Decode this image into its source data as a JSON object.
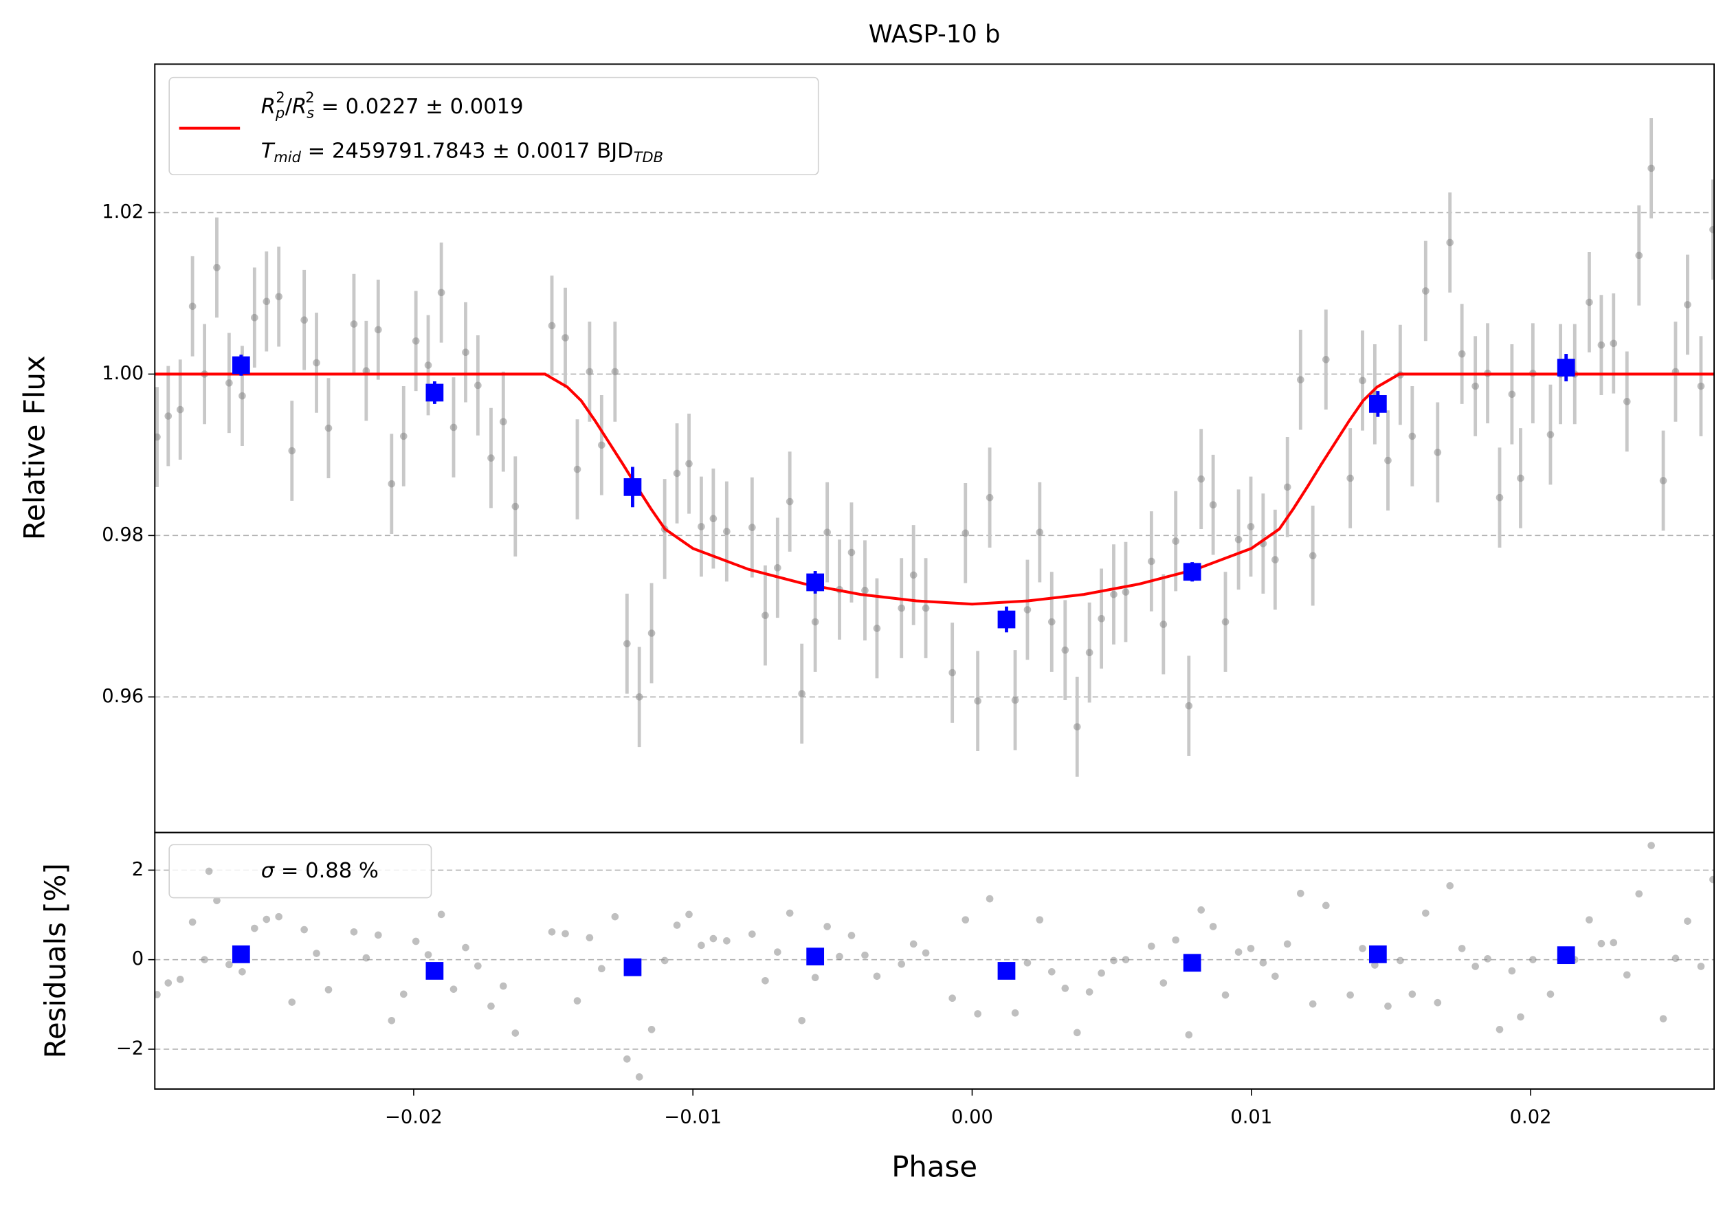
{
  "chart_data": [
    {
      "type": "lightcurve",
      "title": "WASP-10 b",
      "ylabel": "Relative Flux",
      "grid": true,
      "xlim": [
        -0.02927,
        0.02657
      ],
      "ylim": [
        0.9432,
        1.0384
      ],
      "yticks": [
        0.96,
        0.98,
        {
          "value": 1,
          "label": "1.00"
        },
        1.02
      ],
      "points": {
        "color": "#808080",
        "error_color": "#c8c8c8",
        "error": 0.0062,
        "x": [
          -0.02919,
          -0.02879,
          -0.02836,
          -0.02792,
          -0.02749,
          -0.02705,
          -0.02661,
          -0.02614,
          -0.0257,
          -0.02527,
          -0.02483,
          -0.02436,
          -0.02392,
          -0.02348,
          -0.02305,
          -0.02214,
          -0.0217,
          -0.02127,
          -0.02079,
          -0.02036,
          -0.01992,
          -0.01948,
          -0.01901,
          -0.01857,
          -0.01814,
          -0.0177,
          -0.01723,
          -0.01679,
          -0.01636,
          -0.01505,
          -0.01457,
          -0.01414,
          -0.0137,
          -0.01327,
          -0.01279,
          -0.01236,
          -0.01192,
          -0.01148,
          -0.01101,
          -0.01057,
          -0.01014,
          -0.0097,
          -0.00927,
          -0.00879,
          -0.00788,
          -0.00741,
          -0.00697,
          -0.00653,
          -0.0061,
          -0.00562,
          -0.00519,
          -0.00475,
          -0.00432,
          -0.00384,
          -0.00341,
          -0.00253,
          -0.0021,
          -0.00166,
          -0.00071,
          -0.00024,
          0.0002,
          0.00063,
          0.00154,
          0.00198,
          0.00242,
          0.00285,
          0.00333,
          0.00376,
          0.0042,
          0.00463,
          0.00507,
          0.0055,
          0.00642,
          0.00685,
          0.00729,
          0.00776,
          0.0082,
          0.00863,
          0.00907,
          0.00954,
          0.00998,
          0.01042,
          0.01085,
          0.01129,
          0.01176,
          0.0122,
          0.01267,
          0.01354,
          0.01398,
          0.01442,
          0.01489,
          0.01533,
          0.01576,
          0.01624,
          0.01667,
          0.01711,
          0.01754,
          0.01802,
          0.01846,
          0.01889,
          0.01933,
          0.01964,
          0.02008,
          0.02071,
          0.02107,
          0.02158,
          0.0221,
          0.02253,
          0.02297,
          0.02345,
          0.02388,
          0.02432,
          0.02475,
          0.02519,
          0.02562,
          0.0261,
          0.02653
        ],
        "values": [
          0.9922,
          0.9948,
          0.9956,
          1.0084,
          1.0,
          1.0132,
          0.9989,
          0.9973,
          1.007,
          1.009,
          1.0096,
          0.9905,
          1.0067,
          1.0014,
          0.9933,
          1.0062,
          1.0004,
          1.0055,
          0.9864,
          0.9923,
          1.0041,
          1.0011,
          1.0101,
          0.9934,
          1.0027,
          0.9986,
          0.9896,
          0.9941,
          0.9836,
          1.006,
          1.0045,
          0.9882,
          1.0003,
          0.9912,
          1.0003,
          0.9666,
          0.96,
          0.9679,
          0.9808,
          0.9877,
          0.9889,
          0.9811,
          0.9821,
          0.9805,
          0.981,
          0.9701,
          0.976,
          0.9842,
          0.9604,
          0.9693,
          0.9804,
          0.9733,
          0.9779,
          0.9732,
          0.9685,
          0.971,
          0.9751,
          0.971,
          0.963,
          0.9803,
          0.9595,
          0.9847,
          0.9596,
          0.9708,
          0.9804,
          0.9693,
          0.9658,
          0.9563,
          0.9655,
          0.9697,
          0.9727,
          0.973,
          0.9768,
          0.969,
          0.9793,
          0.9589,
          0.987,
          0.9838,
          0.9693,
          0.9795,
          0.9811,
          0.979,
          0.977,
          0.986,
          0.9993,
          0.9775,
          1.0018,
          0.9871,
          0.9992,
          0.9975,
          0.9893,
          0.9999,
          0.9923,
          1.0103,
          0.9903,
          1.0163,
          1.0025,
          0.9985,
          1.0001,
          0.9847,
          0.9975,
          0.9871,
          1.0001,
          0.9925,
          1.0,
          1.0,
          1.0089,
          1.0036,
          1.0038,
          0.9966,
          1.0147,
          1.0255,
          0.9868,
          1.0003,
          1.0086,
          0.9985,
          1.0179
        ]
      },
      "binned": {
        "color": "#0000ff",
        "x": [
          -0.02618,
          -0.01925,
          -0.01216,
          -0.00562,
          0.00123,
          0.00788,
          0.01453,
          0.02127
        ],
        "values": [
          1.0011,
          0.9977,
          0.986,
          0.9742,
          0.9696,
          0.9755,
          0.9963,
          1.0008
        ],
        "errors": [
          0.0013,
          0.0014,
          0.0025,
          0.0014,
          0.0016,
          0.0012,
          0.0016,
          0.0017
        ]
      },
      "model": {
        "color": "#ff0000",
        "name": [
          "R",
          "p",
          "2",
          "/",
          "R",
          "s",
          "2",
          " = 0.0227 ± 0.0019"
        ],
        "name2": [
          "T",
          "mid",
          " = 2459791.7843 ± 0.0017 BJD",
          "TDB"
        ],
        "x": [
          -0.02927,
          -0.0153,
          -0.0145,
          -0.014,
          -0.0135,
          -0.013,
          -0.0125,
          -0.012,
          -0.0115,
          -0.011,
          -0.01,
          -0.008,
          -0.006,
          -0.004,
          -0.002,
          0,
          0.002,
          0.004,
          0.006,
          0.008,
          0.01,
          0.011,
          0.0115,
          0.012,
          0.0125,
          0.013,
          0.0135,
          0.014,
          0.0145,
          0.0153,
          0.02657
        ],
        "values": [
          1.0,
          1.0,
          0.9984,
          0.9967,
          0.9942,
          0.9915,
          0.9888,
          0.986,
          0.9833,
          0.9808,
          0.9784,
          0.9758,
          0.974,
          0.9727,
          0.9719,
          0.9715,
          0.9719,
          0.9727,
          0.974,
          0.9758,
          0.9784,
          0.9808,
          0.9833,
          0.986,
          0.9888,
          0.9915,
          0.9942,
          0.9967,
          0.9984,
          1.0,
          1.0
        ]
      }
    },
    {
      "type": "residuals",
      "xlabel": "Phase",
      "ylabel": "Residuals [%]",
      "grid": true,
      "xlim": [
        -0.02927,
        0.02657
      ],
      "ylim": [
        -2.89,
        2.84
      ],
      "xticks": [
        {
          "value": -0.02,
          "label": "−0.02"
        },
        {
          "value": -0.01,
          "label": "−0.01"
        },
        {
          "value": 0,
          "label": "0.00"
        },
        0.01,
        0.02
      ],
      "yticks": [
        {
          "value": -2,
          "label": "−2"
        },
        0,
        2
      ],
      "legend": [
        "σ",
        " = 0.88 %"
      ],
      "points": {
        "color": "#808080",
        "values": [
          -0.78,
          -0.52,
          -0.44,
          0.84,
          0.0,
          1.32,
          -0.11,
          -0.27,
          0.7,
          0.9,
          0.96,
          -0.95,
          0.67,
          0.14,
          -0.67,
          0.62,
          0.04,
          0.55,
          -1.36,
          -0.77,
          0.41,
          0.11,
          1.01,
          -0.66,
          0.27,
          -0.14,
          -1.04,
          -0.59,
          -1.64,
          0.62,
          0.58,
          -0.92,
          0.49,
          -0.2,
          0.96,
          -2.22,
          -2.62,
          -1.56,
          -0.02,
          0.77,
          1.01,
          0.32,
          0.47,
          0.42,
          0.57,
          -0.47,
          0.17,
          1.04,
          -1.36,
          -0.4,
          0.74,
          0.07,
          0.54,
          0.1,
          -0.37,
          -0.1,
          0.35,
          0.15,
          -0.86,
          0.89,
          -1.21,
          1.36,
          -1.19,
          -0.07,
          0.89,
          -0.27,
          -0.64,
          -1.63,
          -0.72,
          -0.3,
          -0.02,
          0.0,
          0.3,
          -0.52,
          0.44,
          -1.68,
          1.11,
          0.74,
          -0.79,
          0.17,
          0.25,
          -0.07,
          -0.37,
          0.35,
          1.48,
          -0.99,
          1.21,
          -0.79,
          0.25,
          -0.12,
          -1.04,
          -0.02,
          -0.77,
          1.04,
          -0.96,
          1.65,
          0.25,
          -0.15,
          0.02,
          -1.56,
          -0.25,
          -1.28,
          0.0,
          -0.77,
          0.0,
          0.0,
          0.89,
          0.36,
          0.38,
          -0.34,
          1.47,
          2.55,
          -1.32,
          0.03,
          0.86,
          -0.15,
          1.79
        ]
      },
      "binned": {
        "color": "#0000ff",
        "values": [
          0.12,
          -0.25,
          -0.17,
          0.07,
          -0.25,
          -0.07,
          0.12,
          0.1
        ]
      }
    }
  ]
}
